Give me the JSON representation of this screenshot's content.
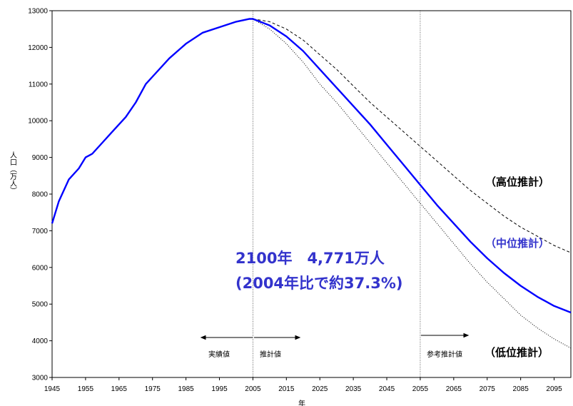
{
  "chart_data": {
    "type": "line",
    "xlabel": "年",
    "ylabel": "人口（万人）",
    "xlim": [
      1945,
      2100
    ],
    "ylim": [
      3000,
      13000
    ],
    "x_ticks": [
      1945,
      1955,
      1965,
      1975,
      1985,
      1995,
      2005,
      2015,
      2025,
      2035,
      2045,
      2055,
      2065,
      2075,
      2085,
      2095
    ],
    "y_ticks": [
      3000,
      4000,
      5000,
      6000,
      7000,
      8000,
      9000,
      10000,
      11000,
      12000,
      13000
    ],
    "divider_years": [
      2005,
      2055
    ],
    "series": [
      {
        "name": "中位推計",
        "color": "#0000ff",
        "style": "solid",
        "x": [
          1945,
          1947,
          1950,
          1953,
          1955,
          1957,
          1960,
          1963,
          1965,
          1967,
          1970,
          1973,
          1975,
          1980,
          1985,
          1990,
          1995,
          2000,
          2004,
          2005,
          2010,
          2015,
          2020,
          2025,
          2030,
          2035,
          2040,
          2045,
          2050,
          2055,
          2060,
          2065,
          2070,
          2075,
          2080,
          2085,
          2090,
          2095,
          2100
        ],
        "values": [
          7200,
          7800,
          8400,
          8700,
          9000,
          9100,
          9400,
          9700,
          9900,
          10100,
          10500,
          11000,
          11200,
          11700,
          12100,
          12400,
          12550,
          12700,
          12779,
          12776,
          12600,
          12300,
          11900,
          11400,
          10900,
          10400,
          9900,
          9350,
          8800,
          8250,
          7700,
          7200,
          6700,
          6250,
          5850,
          5500,
          5200,
          4950,
          4771
        ]
      },
      {
        "name": "高位推計",
        "color": "#000000",
        "style": "dashed",
        "x": [
          2005,
          2010,
          2015,
          2020,
          2025,
          2030,
          2035,
          2040,
          2045,
          2050,
          2055,
          2060,
          2065,
          2070,
          2075,
          2080,
          2085,
          2090,
          2095,
          2100
        ],
        "values": [
          12776,
          12700,
          12500,
          12200,
          11800,
          11400,
          10950,
          10500,
          10100,
          9700,
          9300,
          8900,
          8500,
          8100,
          7750,
          7400,
          7100,
          6850,
          6600,
          6400
        ]
      },
      {
        "name": "低位推計",
        "color": "#000000",
        "style": "dotted",
        "x": [
          2005,
          2010,
          2015,
          2020,
          2025,
          2030,
          2035,
          2040,
          2045,
          2050,
          2055,
          2060,
          2065,
          2070,
          2075,
          2080,
          2085,
          2090,
          2095,
          2100
        ],
        "values": [
          12776,
          12500,
          12100,
          11600,
          11000,
          10500,
          9950,
          9400,
          8850,
          8300,
          7750,
          7200,
          6650,
          6100,
          5600,
          5150,
          4700,
          4350,
          4050,
          3800
        ]
      }
    ],
    "annotations": {
      "jisseki": "実績値",
      "suikei": "推計値",
      "sanko": "参考推計値",
      "high_label": "（高位推計）",
      "mid_label": "（中位推計）",
      "low_label": "（低位推計）",
      "big_line1": "2100年　4,771万人",
      "big_line2": "(2004年比で約37.3%)"
    }
  }
}
